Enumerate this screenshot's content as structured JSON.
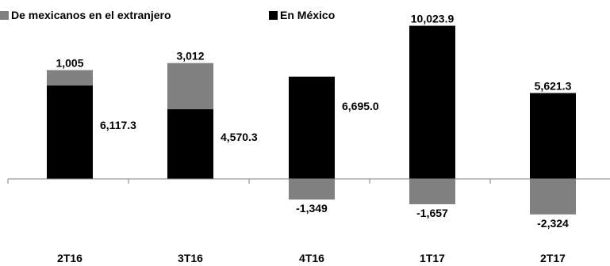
{
  "chart_data": {
    "type": "bar",
    "stacked": true,
    "categories": [
      "2T16",
      "3T16",
      "4T16",
      "1T17",
      "2T17"
    ],
    "series": [
      {
        "name": "De mexicanos en el extranjero",
        "color": "#808080",
        "values": [
          1005,
          3012,
          -1349,
          -1657,
          -2324
        ],
        "labels": [
          "1,005",
          "3,012",
          "-1,349",
          "-1,657",
          "-2,324"
        ]
      },
      {
        "name": "En México",
        "color": "#000000",
        "values": [
          6117.3,
          4570.3,
          6695.0,
          10023.9,
          5621.3
        ],
        "labels": [
          "6,117.3",
          "4,570.3",
          "6,695.0",
          "10,023.9",
          "5,621.3"
        ]
      }
    ],
    "legend_position": "top-left",
    "grid": false,
    "ylim": [
      -3000,
      11000
    ]
  }
}
